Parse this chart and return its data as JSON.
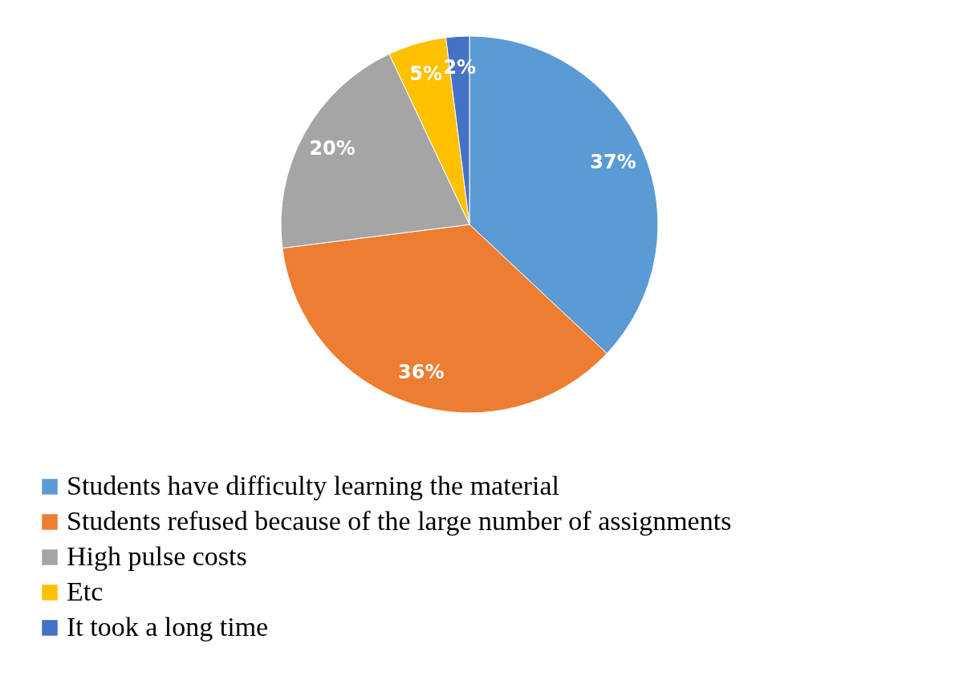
{
  "chart_data": {
    "type": "pie",
    "categories": [
      "Students have difficulty learning the material",
      "Students refused because of the large number of assignments",
      "High pulse costs",
      "Etc",
      "It took a long time"
    ],
    "values": [
      37,
      36,
      20,
      5,
      2
    ],
    "colors": [
      "#5b9bd5",
      "#ed7d31",
      "#a5a5a5",
      "#ffc000",
      "#4472c4"
    ],
    "value_labels": [
      "37%",
      "36%",
      "20%",
      "5%",
      "2%"
    ],
    "legend": "bottom"
  }
}
